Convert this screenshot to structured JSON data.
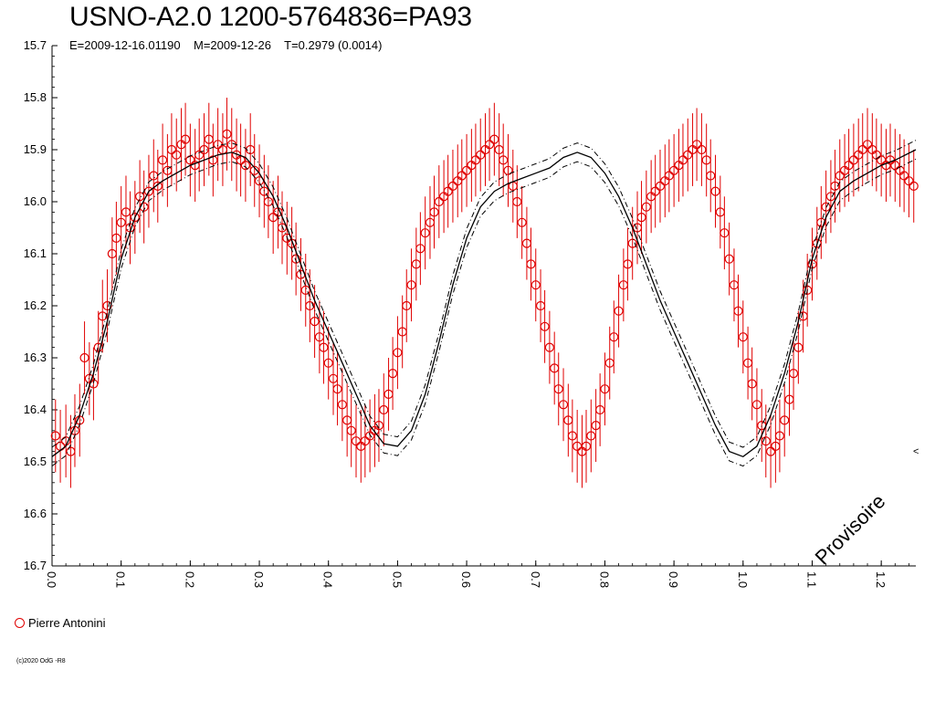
{
  "chart_data": {
    "type": "scatter",
    "title": "USNO-A2.0 1200-5764836=PA93",
    "subtitle": "E=2009-12-16.01190    M=2009-12-26    T=0.2979 (0.0014)",
    "xlabel": "",
    "ylabel": "",
    "xlim": [
      0.0,
      1.25
    ],
    "ylim": [
      15.7,
      16.7
    ],
    "y_inverted": true,
    "x_ticks": [
      "0.0",
      "0.1",
      "0.2",
      "0.3",
      "0.4",
      "0.5",
      "0.6",
      "0.7",
      "0.8",
      "0.9",
      "1.0",
      "1.1",
      "1.2"
    ],
    "y_ticks": [
      "15.7",
      "15.8",
      "15.9",
      "16.0",
      "16.1",
      "16.2",
      "16.3",
      "16.4",
      "16.5",
      "16.6",
      "16.7"
    ],
    "grid": false,
    "legend": "bottom-left",
    "series": [
      {
        "name": "Pierre Antonini",
        "marker": "open-circle",
        "color": "#e00000",
        "error_bar": 0.07,
        "points": [
          [
            0.005,
            16.45
          ],
          [
            0.012,
            16.47
          ],
          [
            0.02,
            16.46
          ],
          [
            0.027,
            16.48
          ],
          [
            0.033,
            16.44
          ],
          [
            0.04,
            16.42
          ],
          [
            0.047,
            16.3
          ],
          [
            0.054,
            16.34
          ],
          [
            0.06,
            16.35
          ],
          [
            0.067,
            16.28
          ],
          [
            0.073,
            16.22
          ],
          [
            0.08,
            16.2
          ],
          [
            0.087,
            16.1
          ],
          [
            0.093,
            16.07
          ],
          [
            0.1,
            16.04
          ],
          [
            0.107,
            16.02
          ],
          [
            0.113,
            16.05
          ],
          [
            0.12,
            16.03
          ],
          [
            0.127,
            15.99
          ],
          [
            0.133,
            16.01
          ],
          [
            0.14,
            15.98
          ],
          [
            0.147,
            15.95
          ],
          [
            0.153,
            15.97
          ],
          [
            0.16,
            15.92
          ],
          [
            0.167,
            15.94
          ],
          [
            0.173,
            15.9
          ],
          [
            0.18,
            15.91
          ],
          [
            0.187,
            15.89
          ],
          [
            0.193,
            15.88
          ],
          [
            0.2,
            15.92
          ],
          [
            0.207,
            15.93
          ],
          [
            0.213,
            15.91
          ],
          [
            0.22,
            15.9
          ],
          [
            0.227,
            15.88
          ],
          [
            0.233,
            15.92
          ],
          [
            0.24,
            15.89
          ],
          [
            0.247,
            15.9
          ],
          [
            0.253,
            15.87
          ],
          [
            0.26,
            15.89
          ],
          [
            0.267,
            15.91
          ],
          [
            0.273,
            15.92
          ],
          [
            0.28,
            15.93
          ],
          [
            0.287,
            15.9
          ],
          [
            0.293,
            15.94
          ],
          [
            0.3,
            15.96
          ],
          [
            0.307,
            15.98
          ],
          [
            0.313,
            16.0
          ],
          [
            0.32,
            16.03
          ],
          [
            0.327,
            16.02
          ],
          [
            0.333,
            16.05
          ],
          [
            0.34,
            16.07
          ],
          [
            0.347,
            16.08
          ],
          [
            0.353,
            16.11
          ],
          [
            0.36,
            16.14
          ],
          [
            0.367,
            16.17
          ],
          [
            0.373,
            16.2
          ],
          [
            0.38,
            16.23
          ],
          [
            0.387,
            16.26
          ],
          [
            0.393,
            16.28
          ],
          [
            0.4,
            16.31
          ],
          [
            0.407,
            16.34
          ],
          [
            0.413,
            16.36
          ],
          [
            0.42,
            16.39
          ],
          [
            0.427,
            16.42
          ],
          [
            0.433,
            16.44
          ],
          [
            0.44,
            16.46
          ],
          [
            0.447,
            16.47
          ],
          [
            0.453,
            16.46
          ],
          [
            0.46,
            16.45
          ],
          [
            0.467,
            16.44
          ],
          [
            0.473,
            16.43
          ],
          [
            0.48,
            16.4
          ],
          [
            0.487,
            16.37
          ],
          [
            0.493,
            16.33
          ],
          [
            0.5,
            16.29
          ],
          [
            0.507,
            16.25
          ],
          [
            0.513,
            16.2
          ],
          [
            0.52,
            16.16
          ],
          [
            0.527,
            16.12
          ],
          [
            0.533,
            16.09
          ],
          [
            0.54,
            16.06
          ],
          [
            0.547,
            16.04
          ],
          [
            0.553,
            16.02
          ],
          [
            0.56,
            16.0
          ],
          [
            0.567,
            15.99
          ],
          [
            0.573,
            15.98
          ],
          [
            0.58,
            15.97
          ],
          [
            0.587,
            15.96
          ],
          [
            0.593,
            15.95
          ],
          [
            0.6,
            15.94
          ],
          [
            0.607,
            15.93
          ],
          [
            0.613,
            15.92
          ],
          [
            0.62,
            15.91
          ],
          [
            0.627,
            15.9
          ],
          [
            0.633,
            15.89
          ],
          [
            0.64,
            15.88
          ],
          [
            0.647,
            15.9
          ],
          [
            0.653,
            15.92
          ],
          [
            0.66,
            15.94
          ],
          [
            0.667,
            15.97
          ],
          [
            0.673,
            16.0
          ],
          [
            0.68,
            16.04
          ],
          [
            0.687,
            16.08
          ],
          [
            0.693,
            16.12
          ],
          [
            0.7,
            16.16
          ],
          [
            0.707,
            16.2
          ],
          [
            0.713,
            16.24
          ],
          [
            0.72,
            16.28
          ],
          [
            0.727,
            16.32
          ],
          [
            0.733,
            16.36
          ],
          [
            0.74,
            16.39
          ],
          [
            0.747,
            16.42
          ],
          [
            0.753,
            16.45
          ],
          [
            0.76,
            16.47
          ],
          [
            0.767,
            16.48
          ],
          [
            0.773,
            16.47
          ],
          [
            0.78,
            16.45
          ],
          [
            0.787,
            16.43
          ],
          [
            0.793,
            16.4
          ],
          [
            0.8,
            16.36
          ],
          [
            0.807,
            16.31
          ],
          [
            0.813,
            16.26
          ],
          [
            0.82,
            16.21
          ],
          [
            0.827,
            16.16
          ],
          [
            0.833,
            16.12
          ],
          [
            0.84,
            16.08
          ],
          [
            0.847,
            16.05
          ],
          [
            0.853,
            16.03
          ],
          [
            0.86,
            16.01
          ],
          [
            0.867,
            15.99
          ],
          [
            0.873,
            15.98
          ],
          [
            0.88,
            15.97
          ],
          [
            0.887,
            15.96
          ],
          [
            0.893,
            15.95
          ],
          [
            0.9,
            15.94
          ],
          [
            0.907,
            15.93
          ],
          [
            0.913,
            15.92
          ],
          [
            0.92,
            15.91
          ],
          [
            0.927,
            15.9
          ],
          [
            0.933,
            15.89
          ],
          [
            0.94,
            15.9
          ],
          [
            0.947,
            15.92
          ],
          [
            0.953,
            15.95
          ],
          [
            0.96,
            15.98
          ],
          [
            0.967,
            16.02
          ],
          [
            0.973,
            16.06
          ],
          [
            0.98,
            16.11
          ],
          [
            0.987,
            16.16
          ],
          [
            0.993,
            16.21
          ],
          [
            1.0,
            16.26
          ],
          [
            1.007,
            16.31
          ],
          [
            1.013,
            16.35
          ],
          [
            1.02,
            16.39
          ],
          [
            1.027,
            16.43
          ],
          [
            1.033,
            16.46
          ],
          [
            1.04,
            16.48
          ],
          [
            1.047,
            16.47
          ],
          [
            1.053,
            16.45
          ],
          [
            1.06,
            16.42
          ],
          [
            1.067,
            16.38
          ],
          [
            1.073,
            16.33
          ],
          [
            1.08,
            16.28
          ],
          [
            1.087,
            16.22
          ],
          [
            1.093,
            16.17
          ],
          [
            1.1,
            16.12
          ],
          [
            1.107,
            16.08
          ],
          [
            1.113,
            16.04
          ],
          [
            1.12,
            16.01
          ],
          [
            1.127,
            15.99
          ],
          [
            1.133,
            15.97
          ],
          [
            1.14,
            15.95
          ],
          [
            1.147,
            15.94
          ],
          [
            1.153,
            15.93
          ],
          [
            1.16,
            15.92
          ],
          [
            1.167,
            15.91
          ],
          [
            1.173,
            15.9
          ],
          [
            1.18,
            15.89
          ],
          [
            1.187,
            15.9
          ],
          [
            1.193,
            15.91
          ],
          [
            1.2,
            15.92
          ],
          [
            1.207,
            15.93
          ],
          [
            1.213,
            15.92
          ],
          [
            1.22,
            15.93
          ],
          [
            1.227,
            15.94
          ],
          [
            1.233,
            15.95
          ],
          [
            1.24,
            15.96
          ],
          [
            1.247,
            15.97
          ]
        ]
      }
    ],
    "fit_curve": {
      "style": "solid",
      "color": "#000000",
      "points": [
        [
          0.0,
          16.49
        ],
        [
          0.02,
          16.47
        ],
        [
          0.04,
          16.41
        ],
        [
          0.06,
          16.33
        ],
        [
          0.08,
          16.23
        ],
        [
          0.1,
          16.11
        ],
        [
          0.12,
          16.03
        ],
        [
          0.14,
          15.98
        ],
        [
          0.16,
          15.96
        ],
        [
          0.18,
          15.945
        ],
        [
          0.2,
          15.93
        ],
        [
          0.22,
          15.92
        ],
        [
          0.24,
          15.91
        ],
        [
          0.26,
          15.905
        ],
        [
          0.28,
          15.915
        ],
        [
          0.3,
          15.945
        ],
        [
          0.32,
          15.99
        ],
        [
          0.34,
          16.05
        ],
        [
          0.36,
          16.12
        ],
        [
          0.38,
          16.19
        ],
        [
          0.4,
          16.25
        ],
        [
          0.42,
          16.31
        ],
        [
          0.44,
          16.37
        ],
        [
          0.46,
          16.43
        ],
        [
          0.48,
          16.465
        ],
        [
          0.5,
          16.47
        ],
        [
          0.52,
          16.44
        ],
        [
          0.54,
          16.37
        ],
        [
          0.56,
          16.27
        ],
        [
          0.58,
          16.16
        ],
        [
          0.6,
          16.07
        ],
        [
          0.62,
          16.01
        ],
        [
          0.64,
          15.98
        ],
        [
          0.66,
          15.965
        ],
        [
          0.68,
          15.955
        ],
        [
          0.7,
          15.945
        ],
        [
          0.72,
          15.935
        ],
        [
          0.74,
          15.915
        ],
        [
          0.76,
          15.905
        ],
        [
          0.78,
          15.915
        ],
        [
          0.8,
          15.945
        ],
        [
          0.82,
          15.99
        ],
        [
          0.84,
          16.05
        ],
        [
          0.86,
          16.12
        ],
        [
          0.88,
          16.19
        ],
        [
          0.9,
          16.25
        ],
        [
          0.92,
          16.31
        ],
        [
          0.94,
          16.37
        ],
        [
          0.96,
          16.43
        ],
        [
          0.98,
          16.48
        ],
        [
          1.0,
          16.49
        ],
        [
          1.02,
          16.47
        ],
        [
          1.04,
          16.41
        ],
        [
          1.06,
          16.33
        ],
        [
          1.08,
          16.23
        ],
        [
          1.1,
          16.11
        ],
        [
          1.12,
          16.03
        ],
        [
          1.14,
          15.98
        ],
        [
          1.16,
          15.96
        ],
        [
          1.18,
          15.945
        ],
        [
          1.2,
          15.93
        ],
        [
          1.22,
          15.92
        ],
        [
          1.25,
          15.9
        ]
      ],
      "envelope_offset": 0.018,
      "envelope_style": "dash-dot"
    }
  },
  "legend_label": "Pierre Antonini",
  "watermark": "Provisoire",
  "copyright": "(c)2020 OdG -R8",
  "axis_marker": "<",
  "colors": {
    "data": "#e00000",
    "axis": "#000000",
    "background": "#ffffff"
  }
}
